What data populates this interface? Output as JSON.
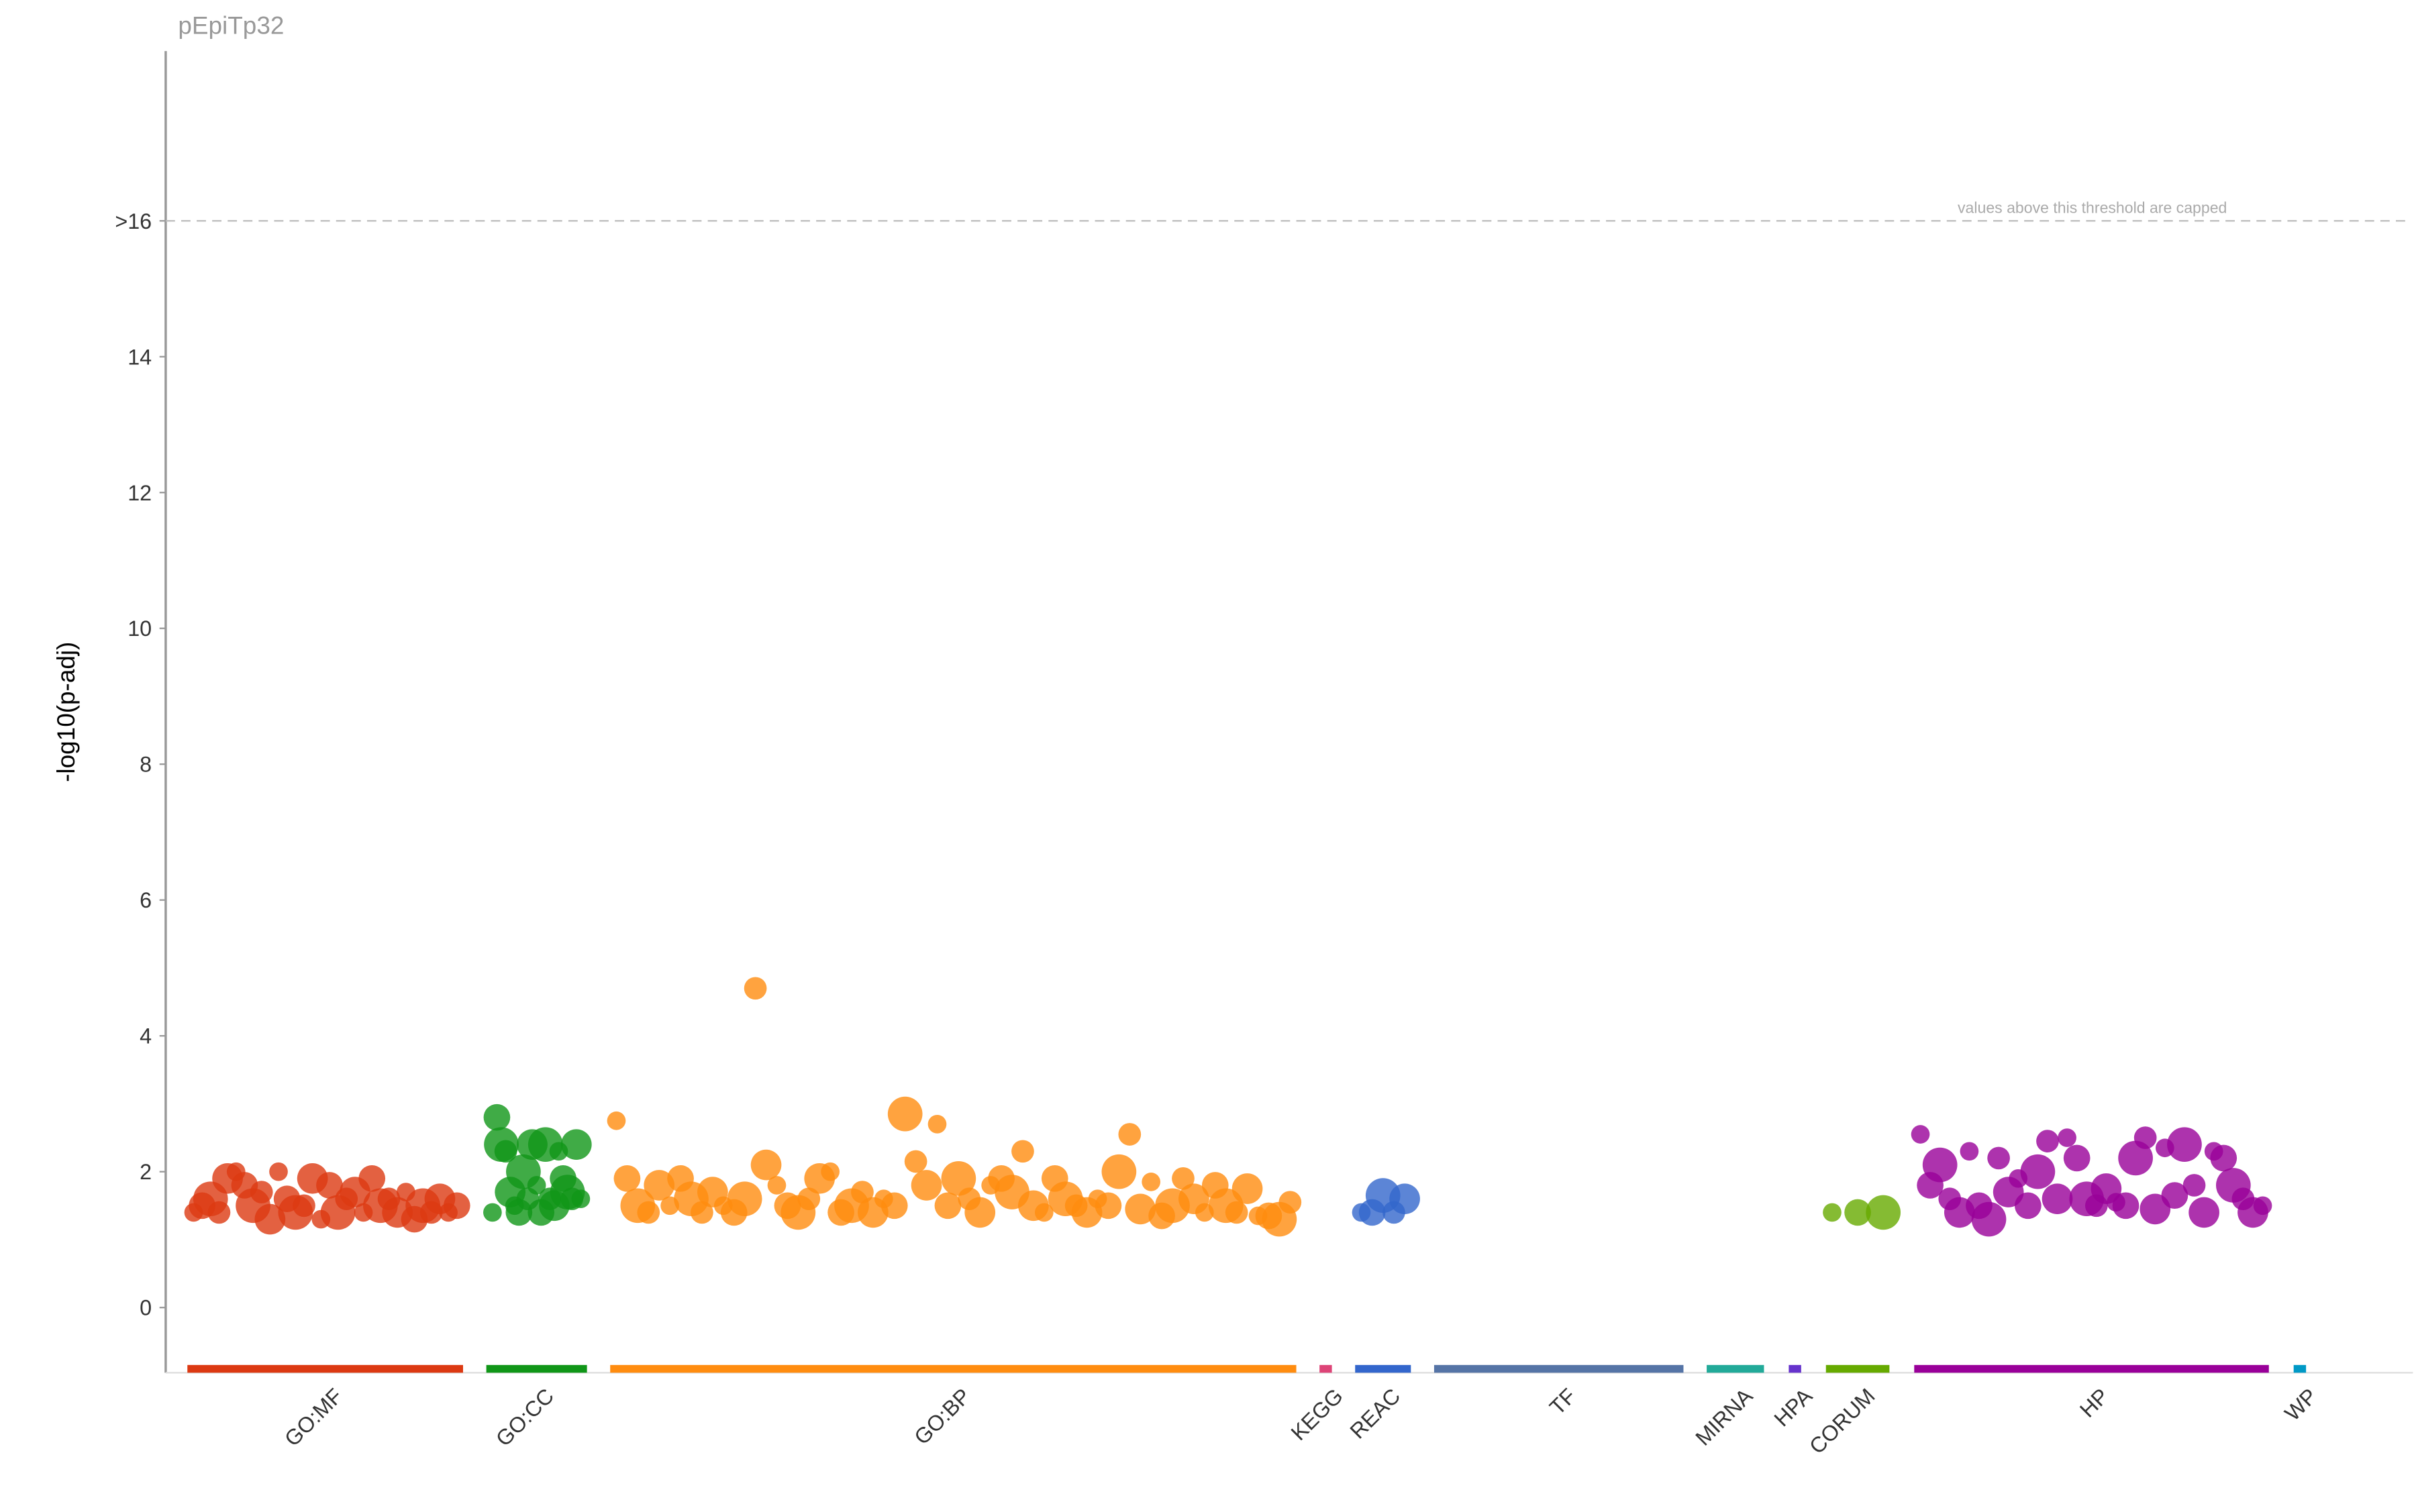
{
  "chart_data": {
    "type": "scatter",
    "title": "pEpiTp32",
    "y_label": "-log10(p-adj)",
    "annotation": "values above this threshold are capped",
    "ylim": [
      -0.96,
      18.5
    ],
    "yticks": [
      0,
      2,
      4,
      6,
      8,
      10,
      12,
      14,
      {
        "value": 16,
        "label": ">16"
      }
    ],
    "threshold": 16,
    "series": [
      {
        "name": "GO:MF",
        "color": "#dc3912",
        "values": [
          1.4,
          1.5,
          1.6,
          1.4,
          1.9,
          2.0,
          1.8,
          1.5,
          1.7,
          1.3,
          2.0,
          1.6,
          1.4,
          1.5,
          1.9,
          1.3,
          1.8,
          1.4,
          1.6,
          1.7,
          1.4,
          1.9,
          1.5,
          1.6,
          1.4,
          1.7,
          1.3,
          1.5,
          1.4,
          1.6,
          1.4,
          1.5
        ]
      },
      {
        "name": "GO:CC",
        "color": "#109618",
        "values": [
          1.4,
          2.8,
          2.4,
          2.3,
          1.7,
          1.5,
          1.4,
          2.0,
          1.6,
          2.4,
          1.8,
          1.4,
          2.4,
          1.6,
          1.5,
          2.3,
          1.9,
          1.7,
          1.6,
          2.4,
          1.6
        ]
      },
      {
        "name": "GO:BP",
        "color": "#ff8c0f",
        "values": [
          2.75,
          1.9,
          1.5,
          1.4,
          1.8,
          1.5,
          1.9,
          1.6,
          1.4,
          1.7,
          1.5,
          1.4,
          1.6,
          4.7,
          2.1,
          1.8,
          1.5,
          1.4,
          1.6,
          1.9,
          2.0,
          1.4,
          1.5,
          1.7,
          1.4,
          1.6,
          1.5,
          2.85,
          2.15,
          1.8,
          2.7,
          1.5,
          1.9,
          1.6,
          1.4,
          1.8,
          1.9,
          1.7,
          2.3,
          1.5,
          1.4,
          1.9,
          1.6,
          1.5,
          1.4,
          1.6,
          1.5,
          2.0,
          2.55,
          1.45,
          1.85,
          1.35,
          1.5,
          1.9,
          1.6,
          1.4,
          1.8,
          1.5,
          1.4,
          1.75,
          1.35,
          1.35,
          1.3,
          1.55
        ]
      },
      {
        "name": "KEGG",
        "color": "#dd4477",
        "values": []
      },
      {
        "name": "REAC",
        "color": "#3366cc",
        "values": [
          1.4,
          1.4,
          1.65,
          1.4,
          1.6
        ]
      },
      {
        "name": "TF",
        "color": "#5574a6",
        "values": []
      },
      {
        "name": "MIRNA",
        "color": "#22aa99",
        "values": []
      },
      {
        "name": "HPA",
        "color": "#6633cc",
        "values": []
      },
      {
        "name": "CORUM",
        "color": "#66aa00",
        "values": [
          1.4,
          1.4,
          1.4
        ]
      },
      {
        "name": "HP",
        "color": "#990099",
        "values": [
          2.55,
          1.8,
          2.1,
          1.6,
          1.4,
          2.3,
          1.5,
          1.3,
          2.2,
          1.7,
          1.9,
          1.5,
          2.0,
          2.45,
          1.6,
          2.5,
          2.2,
          1.6,
          1.5,
          1.75,
          1.55,
          1.5,
          2.2,
          2.5,
          1.45,
          2.35,
          1.65,
          2.4,
          1.8,
          1.4,
          2.3,
          2.2,
          1.8,
          1.6,
          1.4,
          1.5
        ]
      },
      {
        "name": "WP",
        "color": "#0099c6",
        "values": []
      }
    ]
  }
}
